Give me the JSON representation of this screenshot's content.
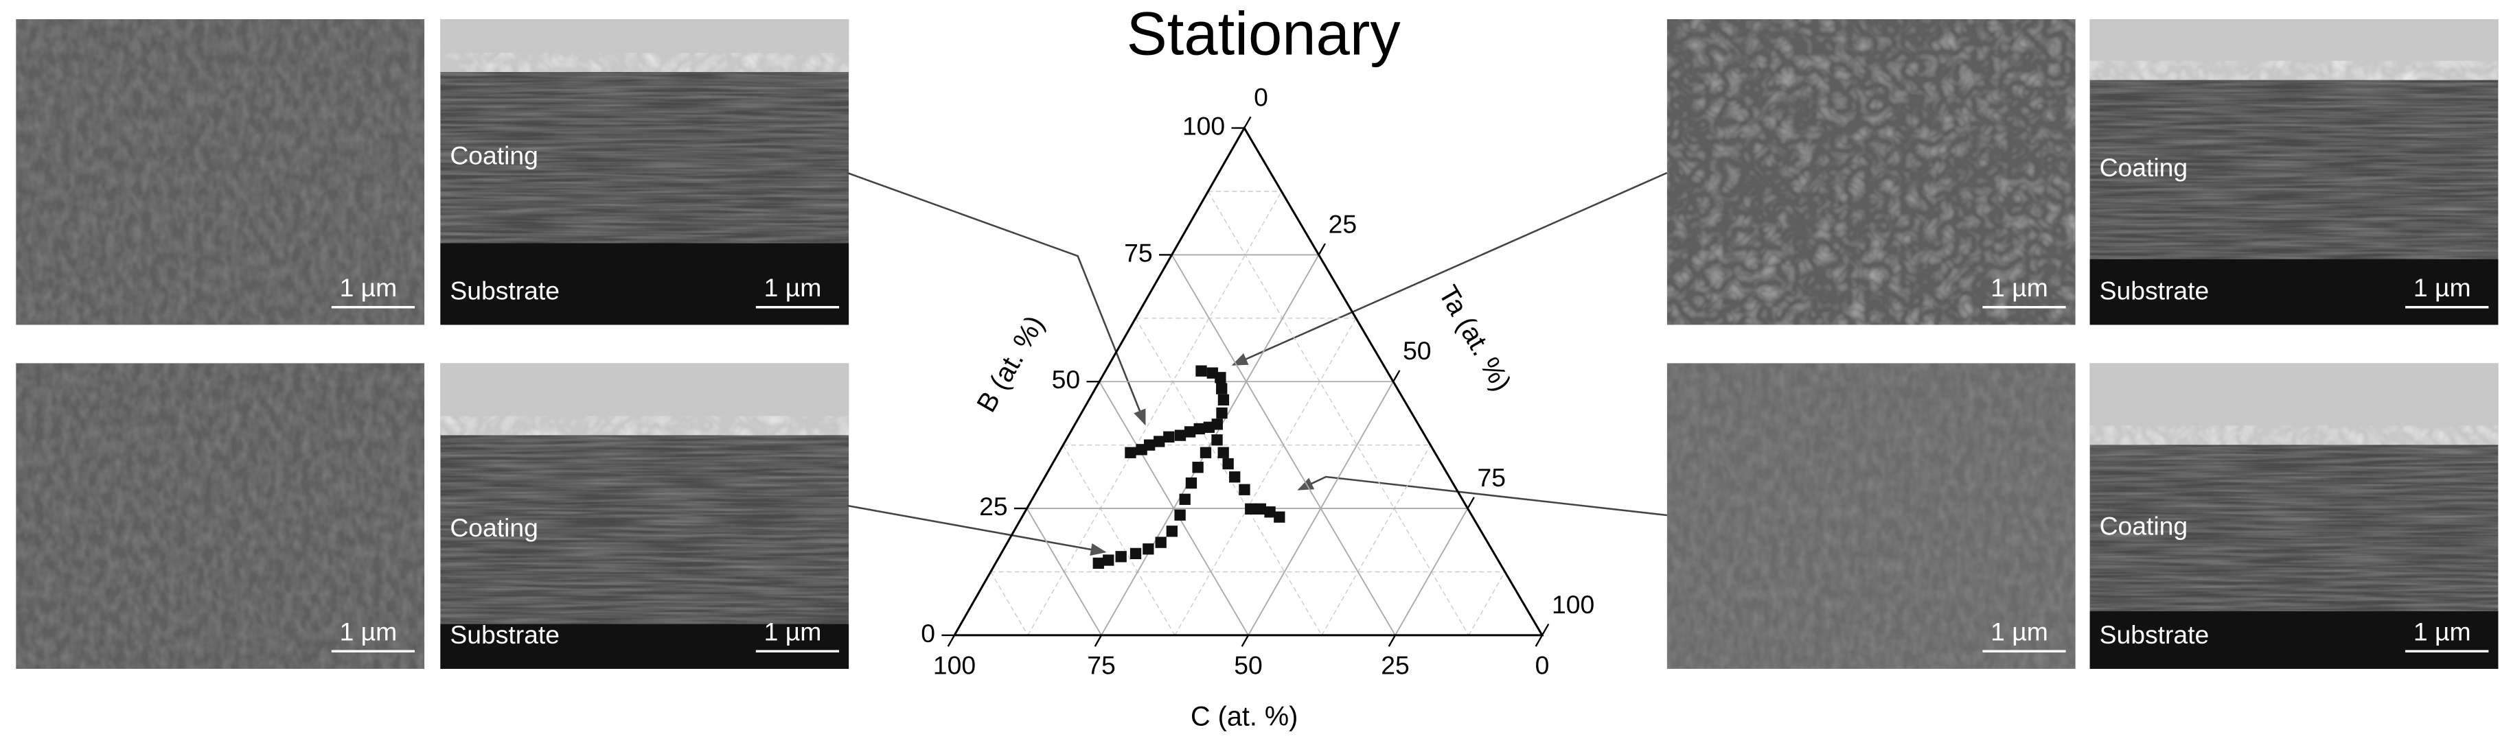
{
  "chart_data": {
    "type": "ternary",
    "title": "Stationary",
    "a_axis_label": "B (at. %)",
    "b_axis_label": "Ta (at. %)",
    "c_axis_label": "C (at. %)",
    "lim": [
      0,
      100
    ],
    "ticks": [
      0,
      25,
      50,
      75,
      100
    ],
    "minorticks": [
      12.5,
      37.5,
      62.5,
      87.5
    ],
    "grid": true,
    "color": "#111111",
    "b": [
      52.1,
      51.7,
      50.8,
      48.6,
      46.4,
      43.8,
      41.6,
      36.0,
      36.6,
      37.5,
      38.2,
      39.1,
      39.4,
      40.1,
      40.7,
      41.0,
      38.5,
      36.0,
      33.8,
      31.2,
      28.7,
      24.9,
      24.9,
      24.3,
      23.3,
      36.0,
      33.1,
      30.0,
      26.8,
      23.7,
      20.5,
      18.3,
      17.0,
      16.1,
      15.5,
      14.8,
      14.2
    ],
    "ta": [
      16.3,
      18.4,
      20.2,
      21.5,
      22.9,
      23.9,
      24.2,
      12.2,
      13.8,
      14.7,
      16.0,
      17.2,
      19.0,
      20.3,
      21.6,
      23.1,
      25.7,
      28.0,
      29.9,
      32.3,
      35.2,
      38.1,
      39.8,
      41.7,
      43.8,
      25.0,
      25.1,
      25.5,
      26.0,
      26.7,
      26.9,
      26.1,
      24.6,
      22.9,
      20.7,
      18.9,
      17.5
    ]
  },
  "images": [
    {
      "scale_bar": "1 µm"
    },
    {
      "coating": "Coating",
      "substrate": "Substrate",
      "scale_bar": "1 µm"
    },
    {
      "scale_bar": "1 µm"
    },
    {
      "coating": "Coating",
      "substrate": "Substrate",
      "scale_bar": "1 µm"
    },
    {
      "scale_bar": "1 µm"
    },
    {
      "coating": "Coating",
      "substrate": "Substrate",
      "scale_bar": "1 µm"
    },
    {
      "scale_bar": "1 µm"
    },
    {
      "coating": "Coating",
      "substrate": "Substrate",
      "scale_bar": "1 µm"
    }
  ]
}
